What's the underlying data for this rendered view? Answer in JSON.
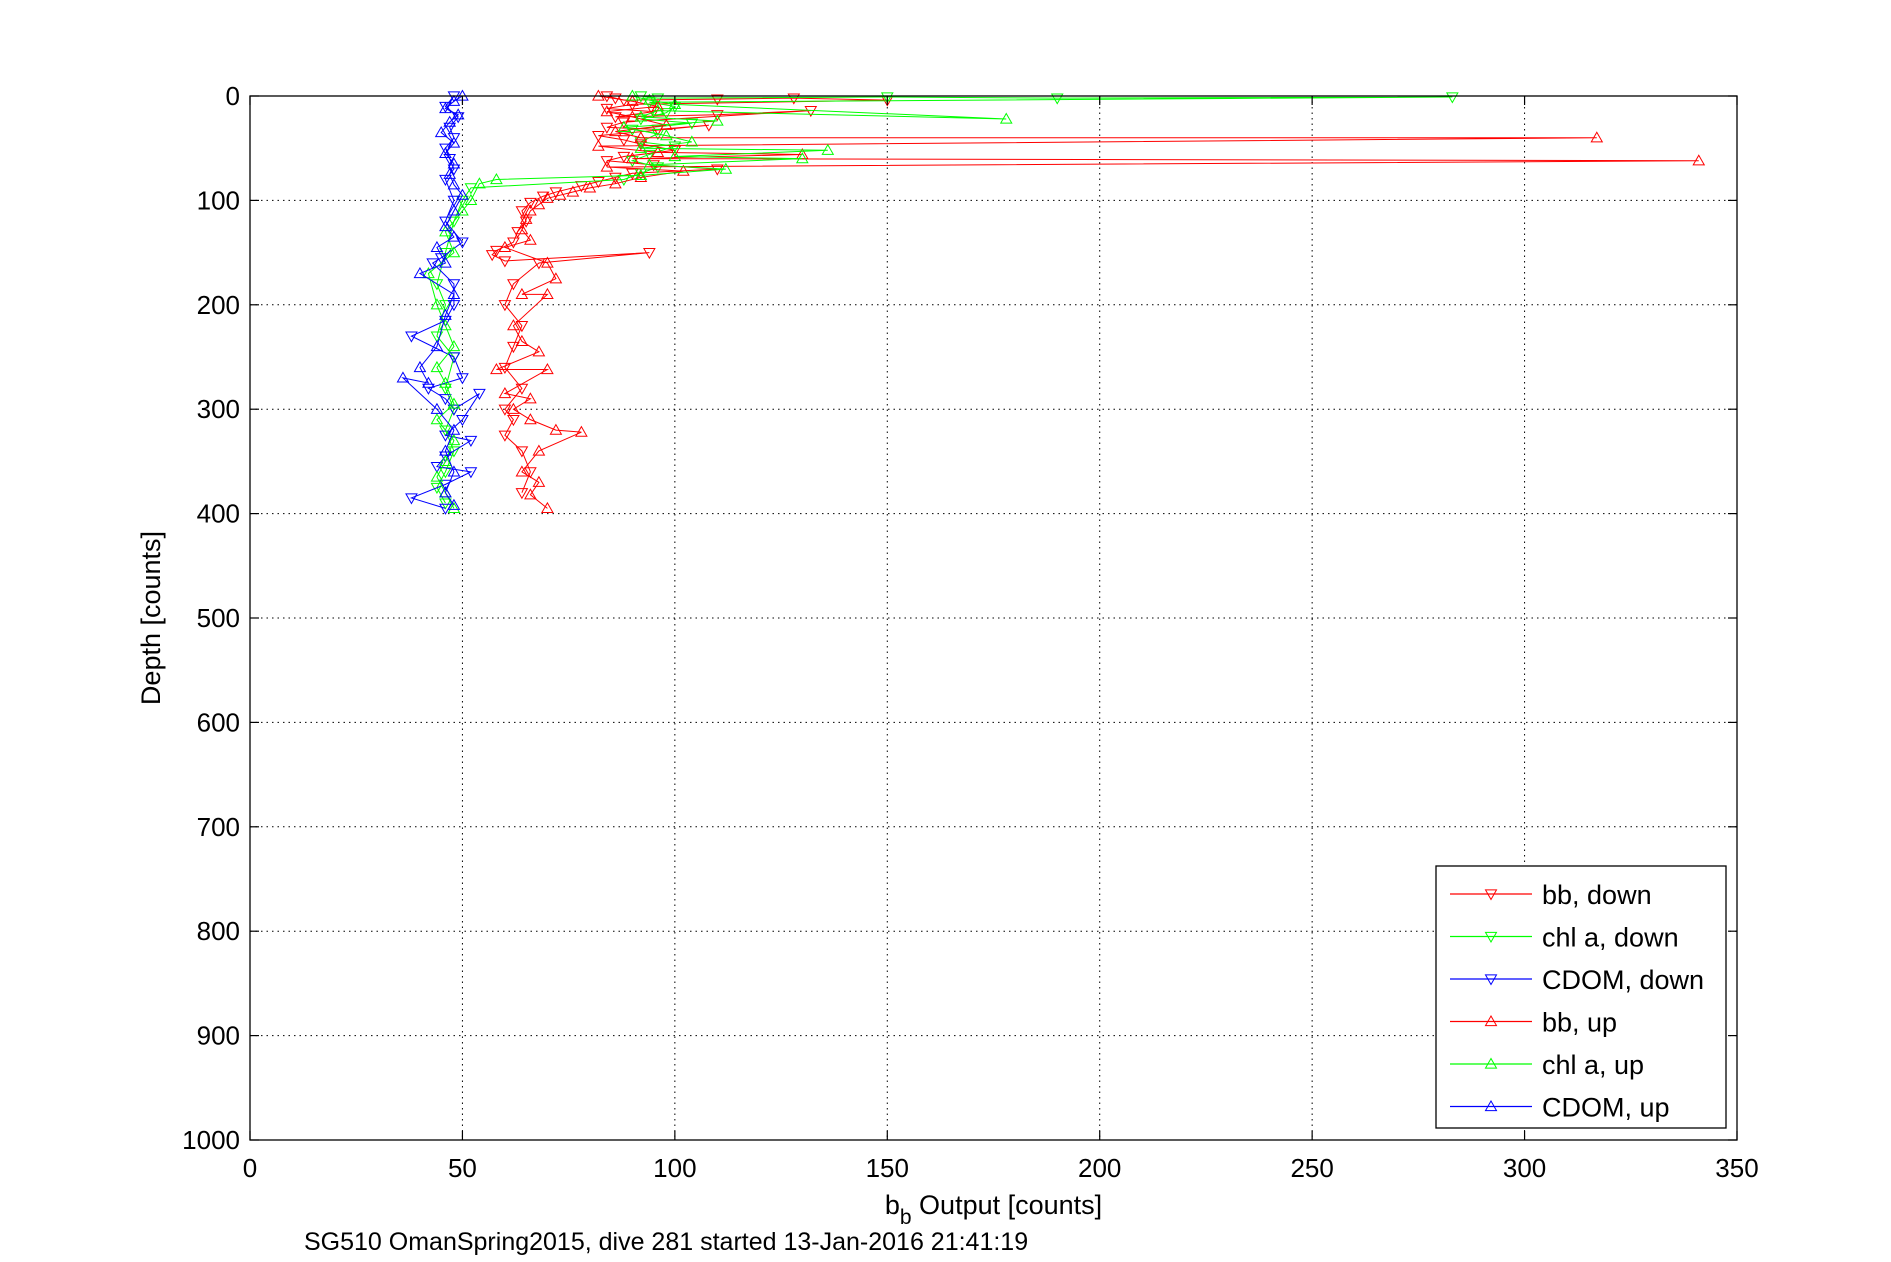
{
  "chart_data": {
    "type": "scatter",
    "xlabel": "b",
    "xlabel_sub": "b",
    "xlabel_rest": " Output [counts]",
    "ylabel": "Depth [counts]",
    "caption": "SG510 OmanSpring2015, dive 281 started 13-Jan-2016 21:41:19",
    "xlim": [
      0,
      350
    ],
    "ylim": [
      0,
      1000
    ],
    "y_reversed": true,
    "grid": true,
    "legend_position": "bottom-right",
    "x_ticks": [
      "0",
      "50",
      "100",
      "150",
      "200",
      "250",
      "300",
      "350"
    ],
    "y_ticks": [
      "0",
      "100",
      "200",
      "300",
      "400",
      "500",
      "600",
      "700",
      "800",
      "900",
      "1000"
    ],
    "series": [
      {
        "name": "bb, down",
        "color": "#ff0000",
        "marker": "triangle-down",
        "points": [
          [
            84,
            0
          ],
          [
            86,
            2
          ],
          [
            88,
            4
          ],
          [
            110,
            3
          ],
          [
            128,
            2
          ],
          [
            150,
            4
          ],
          [
            90,
            8
          ],
          [
            84,
            12
          ],
          [
            95,
            15
          ],
          [
            86,
            20
          ],
          [
            110,
            18
          ],
          [
            132,
            14
          ],
          [
            88,
            25
          ],
          [
            84,
            30
          ],
          [
            96,
            32
          ],
          [
            108,
            28
          ],
          [
            82,
            38
          ],
          [
            88,
            42
          ],
          [
            92,
            46
          ],
          [
            100,
            52
          ],
          [
            88,
            58
          ],
          [
            84,
            62
          ],
          [
            95,
            66
          ],
          [
            110,
            70
          ],
          [
            90,
            74
          ],
          [
            86,
            78
          ],
          [
            82,
            82
          ],
          [
            78,
            86
          ],
          [
            72,
            92
          ],
          [
            69,
            96
          ],
          [
            66,
            102
          ],
          [
            64,
            110
          ],
          [
            65,
            120
          ],
          [
            63,
            130
          ],
          [
            62,
            140
          ],
          [
            58,
            148
          ],
          [
            57,
            152
          ],
          [
            60,
            158
          ],
          [
            94,
            150
          ],
          [
            68,
            160
          ],
          [
            62,
            180
          ],
          [
            60,
            200
          ],
          [
            64,
            220
          ],
          [
            62,
            240
          ],
          [
            60,
            260
          ],
          [
            64,
            280
          ],
          [
            60,
            300
          ],
          [
            62,
            310
          ],
          [
            60,
            325
          ],
          [
            64,
            340
          ],
          [
            66,
            360
          ],
          [
            64,
            380
          ]
        ]
      },
      {
        "name": "chl a, down",
        "color": "#00ff00",
        "marker": "triangle-down",
        "points": [
          [
            92,
            0
          ],
          [
            96,
            2
          ],
          [
            150,
            1
          ],
          [
            190,
            2
          ],
          [
            283,
            1
          ],
          [
            94,
            6
          ],
          [
            100,
            10
          ],
          [
            98,
            16
          ],
          [
            92,
            22
          ],
          [
            104,
            26
          ],
          [
            90,
            32
          ],
          [
            96,
            36
          ],
          [
            92,
            44
          ],
          [
            100,
            48
          ],
          [
            94,
            56
          ],
          [
            90,
            62
          ],
          [
            96,
            68
          ],
          [
            92,
            74
          ],
          [
            88,
            80
          ],
          [
            52,
            88
          ],
          [
            50,
            100
          ],
          [
            48,
            120
          ],
          [
            46,
            150
          ],
          [
            44,
            180
          ],
          [
            46,
            200
          ],
          [
            44,
            230
          ],
          [
            48,
            250
          ],
          [
            46,
            280
          ],
          [
            48,
            300
          ],
          [
            46,
            320
          ],
          [
            48,
            340
          ],
          [
            46,
            360
          ],
          [
            44,
            375
          ],
          [
            46,
            390
          ]
        ]
      },
      {
        "name": "CDOM, down",
        "color": "#0000ff",
        "marker": "triangle-down",
        "points": [
          [
            48,
            0
          ],
          [
            46,
            10
          ],
          [
            49,
            20
          ],
          [
            47,
            30
          ],
          [
            48,
            40
          ],
          [
            46,
            50
          ],
          [
            47,
            60
          ],
          [
            48,
            70
          ],
          [
            46,
            80
          ],
          [
            48,
            100
          ],
          [
            46,
            120
          ],
          [
            50,
            140
          ],
          [
            45,
            155
          ],
          [
            43,
            160
          ],
          [
            48,
            180
          ],
          [
            48,
            200
          ],
          [
            46,
            215
          ],
          [
            38,
            230
          ],
          [
            48,
            250
          ],
          [
            50,
            270
          ],
          [
            42,
            280
          ],
          [
            46,
            290
          ],
          [
            48,
            300
          ],
          [
            54,
            285
          ],
          [
            50,
            310
          ],
          [
            46,
            325
          ],
          [
            52,
            330
          ],
          [
            46,
            345
          ],
          [
            44,
            355
          ],
          [
            52,
            360
          ],
          [
            46,
            372
          ],
          [
            38,
            385
          ],
          [
            46,
            395
          ]
        ]
      },
      {
        "name": "bb, up",
        "color": "#ff0000",
        "marker": "triangle-up",
        "points": [
          [
            82,
            0
          ],
          [
            90,
            5
          ],
          [
            96,
            10
          ],
          [
            84,
            15
          ],
          [
            90,
            20
          ],
          [
            98,
            28
          ],
          [
            86,
            34
          ],
          [
            92,
            40
          ],
          [
            317,
            40
          ],
          [
            82,
            48
          ],
          [
            96,
            54
          ],
          [
            130,
            56
          ],
          [
            90,
            60
          ],
          [
            341,
            62
          ],
          [
            84,
            68
          ],
          [
            102,
            72
          ],
          [
            92,
            78
          ],
          [
            86,
            84
          ],
          [
            80,
            88
          ],
          [
            76,
            92
          ],
          [
            73,
            95
          ],
          [
            70,
            98
          ],
          [
            68,
            104
          ],
          [
            66,
            110
          ],
          [
            65,
            118
          ],
          [
            64,
            128
          ],
          [
            66,
            138
          ],
          [
            60,
            145
          ],
          [
            70,
            160
          ],
          [
            72,
            175
          ],
          [
            64,
            190
          ],
          [
            70,
            190
          ],
          [
            62,
            220
          ],
          [
            64,
            235
          ],
          [
            68,
            245
          ],
          [
            58,
            262
          ],
          [
            70,
            262
          ],
          [
            60,
            285
          ],
          [
            66,
            290
          ],
          [
            62,
            300
          ],
          [
            66,
            310
          ],
          [
            72,
            320
          ],
          [
            78,
            322
          ],
          [
            68,
            340
          ],
          [
            64,
            360
          ],
          [
            68,
            370
          ],
          [
            66,
            382
          ],
          [
            70,
            395
          ]
        ]
      },
      {
        "name": "chl a, up",
        "color": "#00ff00",
        "marker": "triangle-up",
        "points": [
          [
            90,
            0
          ],
          [
            94,
            4
          ],
          [
            100,
            8
          ],
          [
            178,
            22
          ],
          [
            96,
            14
          ],
          [
            92,
            20
          ],
          [
            110,
            24
          ],
          [
            88,
            30
          ],
          [
            98,
            38
          ],
          [
            104,
            44
          ],
          [
            92,
            50
          ],
          [
            136,
            52
          ],
          [
            100,
            58
          ],
          [
            130,
            60
          ],
          [
            94,
            66
          ],
          [
            112,
            70
          ],
          [
            92,
            76
          ],
          [
            58,
            80
          ],
          [
            54,
            84
          ],
          [
            52,
            100
          ],
          [
            50,
            110
          ],
          [
            46,
            130
          ],
          [
            48,
            150
          ],
          [
            42,
            170
          ],
          [
            44,
            200
          ],
          [
            46,
            220
          ],
          [
            48,
            240
          ],
          [
            44,
            260
          ],
          [
            46,
            275
          ],
          [
            48,
            295
          ],
          [
            44,
            310
          ],
          [
            48,
            330
          ],
          [
            46,
            350
          ],
          [
            44,
            365
          ],
          [
            46,
            380
          ],
          [
            48,
            395
          ]
        ]
      },
      {
        "name": "CDOM, up",
        "color": "#0000ff",
        "marker": "triangle-up",
        "points": [
          [
            50,
            0
          ],
          [
            48,
            5
          ],
          [
            46,
            12
          ],
          [
            49,
            18
          ],
          [
            47,
            25
          ],
          [
            45,
            35
          ],
          [
            48,
            45
          ],
          [
            46,
            55
          ],
          [
            48,
            65
          ],
          [
            47,
            75
          ],
          [
            48,
            85
          ],
          [
            50,
            95
          ],
          [
            48,
            110
          ],
          [
            46,
            125
          ],
          [
            48,
            135
          ],
          [
            44,
            145
          ],
          [
            46,
            160
          ],
          [
            40,
            170
          ],
          [
            48,
            190
          ],
          [
            46,
            210
          ],
          [
            44,
            240
          ],
          [
            40,
            260
          ],
          [
            42,
            275
          ],
          [
            36,
            270
          ],
          [
            44,
            300
          ],
          [
            48,
            320
          ],
          [
            46,
            340
          ],
          [
            48,
            360
          ],
          [
            46,
            380
          ],
          [
            48,
            392
          ]
        ]
      }
    ]
  }
}
